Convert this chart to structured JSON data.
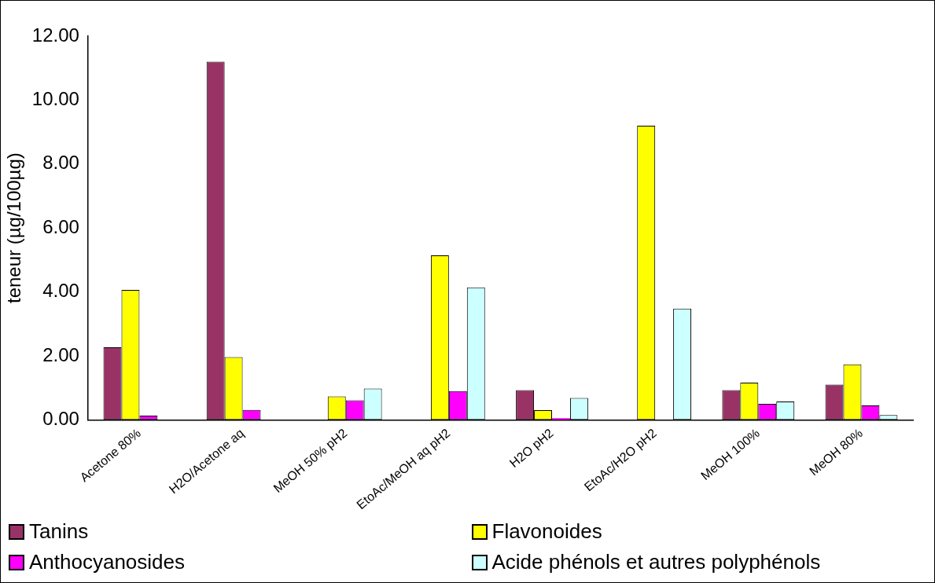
{
  "chart_data": {
    "type": "bar",
    "ylabel": "teneur (µg/100µg)",
    "categories": [
      "Acetone 80%",
      "H2O/Acetone aq",
      "MeOH 50% pH2",
      "EtoAc/MeOH aq pH2",
      "H2O pH2",
      "EtoAc/H2O pH2",
      "MeOH 100%",
      "MeOH 80%"
    ],
    "series": [
      {
        "name": "Tanins",
        "color": "#993366",
        "values": [
          2.27,
          11.2,
          null,
          null,
          0.93,
          null,
          0.93,
          1.1
        ]
      },
      {
        "name": "Flavonoides",
        "color": "#ffff00",
        "values": [
          4.06,
          1.96,
          0.73,
          5.14,
          0.3,
          9.2,
          1.16,
          1.73
        ]
      },
      {
        "name": "Anthocyanosides",
        "color": "#ff00ff",
        "values": [
          0.13,
          0.31,
          0.61,
          0.9,
          0.05,
          null,
          0.5,
          0.45
        ]
      },
      {
        "name": "Acide phénols et autres polyphénols",
        "color": "#ccffff",
        "values": [
          null,
          null,
          0.98,
          4.14,
          0.68,
          3.48,
          0.57,
          0.15
        ]
      }
    ],
    "ylim": [
      0,
      12
    ],
    "yticks": [
      {
        "value": 0,
        "label": "0.00"
      },
      {
        "value": 2,
        "label": "2.00"
      },
      {
        "value": 4,
        "label": "4.00"
      },
      {
        "value": 6,
        "label": "6.00"
      },
      {
        "value": 8,
        "label": "8.00"
      },
      {
        "value": 10,
        "label": "10.00"
      },
      {
        "value": 12,
        "label": "12.00"
      }
    ],
    "grid": false,
    "legend": "bottom"
  }
}
